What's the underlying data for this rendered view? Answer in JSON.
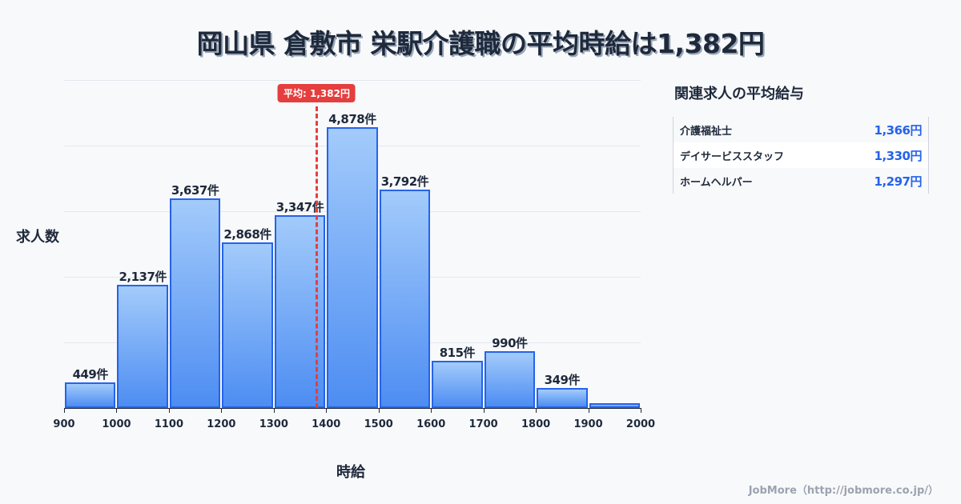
{
  "title": "岡山県 倉敷市 栄駅介護職の平均時給は1,382円",
  "chart_data": {
    "type": "bar",
    "title": "岡山県 倉敷市 栄駅介護職の平均時給は1,382円",
    "xlabel": "時給",
    "ylabel": "求人数",
    "categories": [
      "900-1000",
      "1000-1100",
      "1100-1200",
      "1200-1300",
      "1300-1400",
      "1400-1500",
      "1500-1600",
      "1600-1700",
      "1700-1800",
      "1800-1900",
      "1900-2000"
    ],
    "values": [
      449,
      2137,
      3637,
      2868,
      3347,
      4878,
      3792,
      815,
      990,
      349,
      80
    ],
    "value_labels": [
      "449件",
      "2,137件",
      "3,637件",
      "2,868件",
      "3,347件",
      "4,878件",
      "3,792件",
      "815件",
      "990件",
      "349件",
      ""
    ],
    "x_ticks": [
      "900",
      "1000",
      "1100",
      "1200",
      "1300",
      "1400",
      "1500",
      "1600",
      "1700",
      "1800",
      "1900",
      "2000"
    ],
    "xlim": [
      900,
      2000
    ],
    "ylim": [
      0,
      5000
    ],
    "grid": true,
    "mean": {
      "value": 1382,
      "label": "平均: 1,382円",
      "color": "#e53e3e"
    },
    "bar_color": "#2563eb"
  },
  "related": {
    "title": "関連求人の平均給与",
    "rows": [
      {
        "name": "介護福祉士",
        "value": "1,366円"
      },
      {
        "name": "デイサービススタッフ",
        "value": "1,330円"
      },
      {
        "name": "ホームヘルパー",
        "value": "1,297円"
      }
    ]
  },
  "footer": "JobMore（http://jobmore.co.jp/）"
}
